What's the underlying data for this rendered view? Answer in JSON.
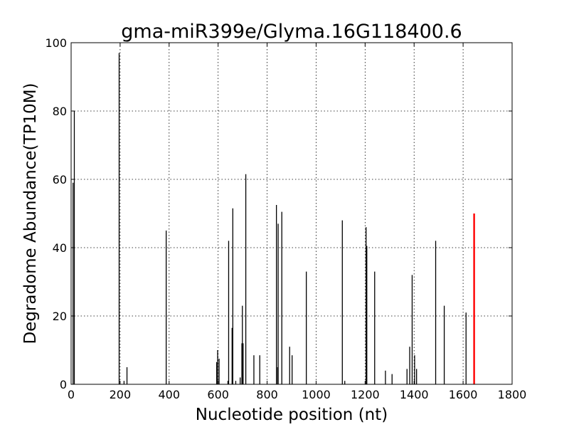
{
  "chart_data": {
    "type": "bar",
    "title": "gma-miR399e/Glyma.16G118400.6",
    "xlabel": "Nucleotide position (nt)",
    "ylabel": "Degradome Abundance(TP10M)",
    "xlim": [
      0,
      1800
    ],
    "ylim": [
      0,
      100
    ],
    "xticks": [
      0,
      200,
      400,
      600,
      800,
      1000,
      1200,
      1400,
      1600,
      1800
    ],
    "yticks": [
      0,
      20,
      40,
      60,
      80,
      100
    ],
    "grid": true,
    "series": [
      {
        "color": "#000000",
        "points": [
          {
            "x": 8,
            "y": 59
          },
          {
            "x": 13,
            "y": 80
          },
          {
            "x": 196,
            "y": 97
          },
          {
            "x": 216,
            "y": 1
          },
          {
            "x": 228,
            "y": 5
          },
          {
            "x": 388,
            "y": 45
          },
          {
            "x": 594,
            "y": 6.5
          },
          {
            "x": 598,
            "y": 10
          },
          {
            "x": 604,
            "y": 7.5
          },
          {
            "x": 640,
            "y": 1
          },
          {
            "x": 643,
            "y": 42
          },
          {
            "x": 657,
            "y": 16.5
          },
          {
            "x": 660,
            "y": 51.5
          },
          {
            "x": 672,
            "y": 1
          },
          {
            "x": 690,
            "y": 2
          },
          {
            "x": 697,
            "y": 12
          },
          {
            "x": 699,
            "y": 23
          },
          {
            "x": 702,
            "y": 12
          },
          {
            "x": 713,
            "y": 61.5
          },
          {
            "x": 746,
            "y": 8.5
          },
          {
            "x": 770,
            "y": 8.5
          },
          {
            "x": 838,
            "y": 52.5
          },
          {
            "x": 843,
            "y": 5
          },
          {
            "x": 845,
            "y": 47
          },
          {
            "x": 860,
            "y": 50.5
          },
          {
            "x": 892,
            "y": 11
          },
          {
            "x": 902,
            "y": 8.5
          },
          {
            "x": 960,
            "y": 33
          },
          {
            "x": 1107,
            "y": 48
          },
          {
            "x": 1117,
            "y": 1
          },
          {
            "x": 1204,
            "y": 46
          },
          {
            "x": 1207,
            "y": 40.5
          },
          {
            "x": 1239,
            "y": 33
          },
          {
            "x": 1283,
            "y": 4
          },
          {
            "x": 1310,
            "y": 3
          },
          {
            "x": 1371,
            "y": 4.5
          },
          {
            "x": 1382,
            "y": 11
          },
          {
            "x": 1392,
            "y": 32
          },
          {
            "x": 1402,
            "y": 8.5
          },
          {
            "x": 1410,
            "y": 4.5
          },
          {
            "x": 1488,
            "y": 42
          },
          {
            "x": 1523,
            "y": 23
          },
          {
            "x": 1612,
            "y": 21
          }
        ]
      },
      {
        "color": "#ff0000",
        "points": [
          {
            "x": 1645,
            "y": 50
          }
        ]
      }
    ]
  }
}
